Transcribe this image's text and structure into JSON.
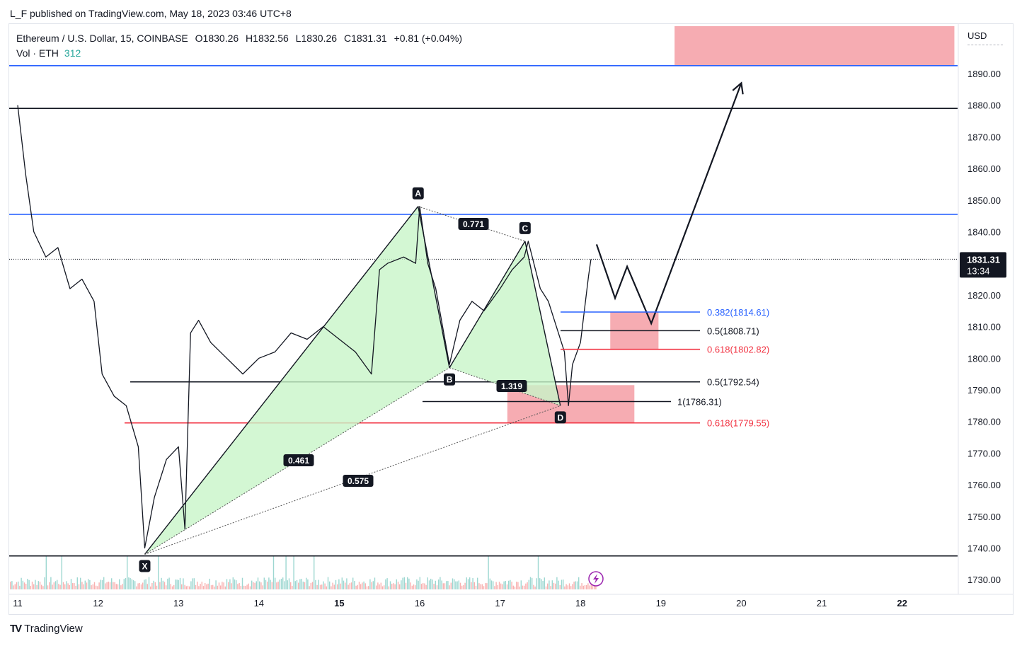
{
  "header": {
    "publisher_text": "L_F published on TradingView.com, May 18, 2023 03:46 UTC+8"
  },
  "legend": {
    "symbol": "Ethereum / U.S. Dollar, 15, COINBASE",
    "open": "O1830.26",
    "high": "H1832.56",
    "low": "L1830.26",
    "close": "C1831.31",
    "change": "+0.81 (+0.04%)",
    "volume_label": "Vol · ETH",
    "volume_value": "312"
  },
  "axis": {
    "currency": "USD",
    "price_ticks": [
      "1890.00",
      "1880.00",
      "1870.00",
      "1860.00",
      "1850.00",
      "1840.00",
      "1830.00",
      "1820.00",
      "1810.00",
      "1800.00",
      "1790.00",
      "1780.00",
      "1770.00",
      "1760.00",
      "1750.00",
      "1740.00",
      "1730.00"
    ],
    "date_ticks": [
      "11",
      "12",
      "13",
      "14",
      "15",
      "16",
      "17",
      "18",
      "19",
      "20",
      "21",
      "22"
    ],
    "current_price": "1831.31",
    "countdown": "13:34"
  },
  "footer": {
    "brand": "TradingView"
  },
  "colors": {
    "up": "#26a69a",
    "down": "#ef5350",
    "blue_line": "#2962ff",
    "red_line": "#f23645",
    "pattern_fill": "#c8f5c8",
    "zone_fill": "#f5a3aa"
  },
  "chart_data": {
    "type": "line",
    "title": "Ethereum / U.S. Dollar, 15, COINBASE",
    "ylim": [
      1726,
      1898
    ],
    "price_series": {
      "name": "ETHUSD",
      "x": [
        11.0,
        11.1,
        11.2,
        11.35,
        11.5,
        11.65,
        11.8,
        11.95,
        12.05,
        12.2,
        12.35,
        12.5,
        12.58,
        12.7,
        12.85,
        13.0,
        13.08,
        13.15,
        13.25,
        13.4,
        13.6,
        13.8,
        14.0,
        14.2,
        14.4,
        14.6,
        14.8,
        15.0,
        15.2,
        15.4,
        15.5,
        15.6,
        15.8,
        15.95,
        16.0,
        16.1,
        16.2,
        16.37,
        16.5,
        16.65,
        16.8,
        17.0,
        17.15,
        17.3,
        17.35,
        17.5,
        17.6,
        17.7,
        17.8,
        17.85,
        17.9,
        18.0,
        18.1,
        18.13
      ],
      "y": [
        1880,
        1858,
        1840,
        1832,
        1835,
        1822,
        1825,
        1818,
        1795,
        1788,
        1785,
        1772,
        1740,
        1756,
        1768,
        1772,
        1746,
        1808,
        1812,
        1805,
        1800,
        1795,
        1800,
        1802,
        1808,
        1806,
        1810,
        1806,
        1802,
        1795,
        1828,
        1830,
        1832,
        1830,
        1848,
        1830,
        1822,
        1798,
        1812,
        1818,
        1815,
        1822,
        1828,
        1832,
        1837,
        1822,
        1818,
        1810,
        1802,
        1785,
        1798,
        1805,
        1826,
        1831.31
      ]
    },
    "pattern": {
      "points": [
        {
          "label": "X",
          "date": 12.58,
          "price": 1738
        },
        {
          "label": "A",
          "date": 15.98,
          "price": 1848
        },
        {
          "label": "B",
          "date": 16.37,
          "price": 1797
        },
        {
          "label": "C",
          "date": 17.31,
          "price": 1837
        },
        {
          "label": "D",
          "date": 17.75,
          "price": 1785
        }
      ],
      "ratios": [
        "0.771",
        "0.461",
        "0.575",
        "1.319"
      ]
    },
    "horizontal_lines": [
      {
        "price": 1892.5,
        "color": "blue"
      },
      {
        "price": 1879,
        "color": "black"
      },
      {
        "price": 1845.5,
        "color": "blue"
      },
      {
        "price": 1792.54,
        "color": "black"
      },
      {
        "price": 1779.55,
        "color": "red"
      },
      {
        "price": 1737.5,
        "color": "black"
      }
    ],
    "fib_levels": [
      {
        "label": "0.382(1814.61)",
        "price": 1814.61,
        "color": "blue"
      },
      {
        "label": "0.5(1808.71)",
        "price": 1808.71,
        "color": "black"
      },
      {
        "label": "0.618(1802.82)",
        "price": 1802.82,
        "color": "red"
      },
      {
        "label": "0.5(1792.54)",
        "price": 1792.54,
        "color": "black"
      },
      {
        "label": "1(1786.31)",
        "price": 1786.31,
        "color": "black"
      },
      {
        "label": "0.618(1779.55)",
        "price": 1779.55,
        "color": "red"
      }
    ],
    "zones": [
      {
        "date_from": 19.17,
        "date_to": 22.65,
        "price_from": 1892.5,
        "price_to": 1905
      },
      {
        "date_from": 18.37,
        "date_to": 18.97,
        "price_from": 1802.82,
        "price_to": 1814.61
      },
      {
        "date_from": 17.09,
        "date_to": 18.67,
        "price_from": 1779.55,
        "price_to": 1791.5
      }
    ],
    "projection": {
      "x": [
        18.2,
        18.43,
        18.58,
        18.88,
        20.0
      ],
      "y": [
        1836,
        1819,
        1829,
        1811,
        1887
      ]
    },
    "xticks": [
      "11",
      "12",
      "13",
      "14",
      "15",
      "16",
      "17",
      "18",
      "19",
      "20",
      "21",
      "22"
    ]
  }
}
